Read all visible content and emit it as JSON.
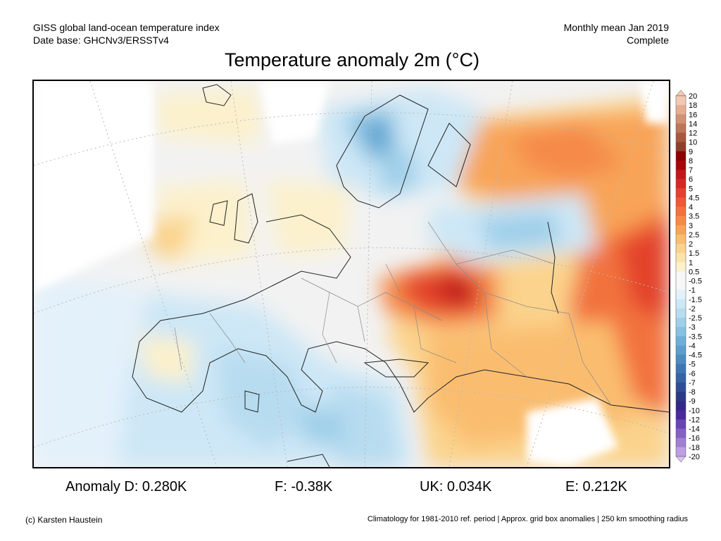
{
  "header": {
    "left_line1": "GISS global land-ocean temperature index",
    "left_line2": "Date base: GHCNv3/ERSSTv4",
    "right_line1": "Monthly mean Jan 2019",
    "right_line2": "Complete"
  },
  "title": "Temperature anomaly 2m (°C)",
  "legend": {
    "labels": [
      "20",
      "18",
      "16",
      "14",
      "12",
      "10",
      "9",
      "8",
      "7",
      "6",
      "5",
      "4.5",
      "4",
      "3.5",
      "3",
      "2.5",
      "2",
      "1.5",
      "1",
      "0.5",
      "-0.5",
      "-1",
      "-1.5",
      "-2",
      "-2.5",
      "-3",
      "-3.5",
      "-4",
      "-4.5",
      "-5",
      "-6",
      "-7",
      "-8",
      "-9",
      "-10",
      "-12",
      "-14",
      "-16",
      "-18",
      "-20"
    ],
    "colors": [
      "#f3c9b3",
      "#e6ad92",
      "#d59175",
      "#c07458",
      "#a9583f",
      "#913f2b",
      "#8b0000",
      "#a50a0a",
      "#be1a1a",
      "#d42a24",
      "#e3422c",
      "#ec5a34",
      "#f2723c",
      "#f58a48",
      "#f8a458",
      "#fabd6f",
      "#fbd38c",
      "#fbe4aa",
      "#fcf1cc",
      "#f7f7f7",
      "#f7f7f7",
      "#e3f1fb",
      "#cde7f6",
      "#b7dcf0",
      "#9fcfe9",
      "#86c1e1",
      "#6eb1d8",
      "#5a9fcf",
      "#4a8cc4",
      "#3d76b6",
      "#3562a8",
      "#2e4d98",
      "#2b3a88",
      "#33278a",
      "#4a2a9a",
      "#6a44b2",
      "#8660c6",
      "#a27fd6",
      "#bd9fe4",
      "#d7c2f0"
    ]
  },
  "anomalies": {
    "d": "Anomaly D: 0.280K",
    "f": "F: -0.38K",
    "uk": "UK: 0.034K",
    "e": "E: 0.212K"
  },
  "footer": {
    "copyright": "(c) Karsten Haustein",
    "note": "Climatology for 1981-2010 ref. period | Approx. grid box anomalies | 250 km smoothing radius"
  }
}
